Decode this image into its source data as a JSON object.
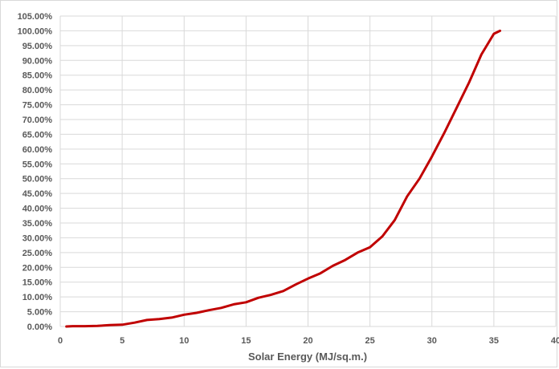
{
  "chart_data": {
    "type": "line",
    "title": "",
    "xlabel": "Solar Energy (MJ/sq.m.)",
    "ylabel": "",
    "xlim": [
      0,
      40
    ],
    "ylim": [
      0,
      1.05
    ],
    "x_ticks": [
      "0",
      "5",
      "10",
      "15",
      "20",
      "25",
      "30",
      "35",
      "40"
    ],
    "y_ticks": [
      "0.00%",
      "5.00%",
      "10.00%",
      "15.00%",
      "20.00%",
      "25.00%",
      "30.00%",
      "35.00%",
      "40.00%",
      "45.00%",
      "50.00%",
      "55.00%",
      "60.00%",
      "65.00%",
      "70.00%",
      "75.00%",
      "80.00%",
      "85.00%",
      "90.00%",
      "95.00%",
      "100.00%",
      "105.00%"
    ],
    "grid": true,
    "legend": "none",
    "series": [
      {
        "color": "#c00000",
        "points": [
          [
            0.5,
            0.0
          ],
          [
            1,
            0.001
          ],
          [
            2,
            0.001
          ],
          [
            3,
            0.002
          ],
          [
            4,
            0.005
          ],
          [
            5,
            0.006
          ],
          [
            6,
            0.013
          ],
          [
            7,
            0.022
          ],
          [
            8,
            0.025
          ],
          [
            9,
            0.03
          ],
          [
            10,
            0.04
          ],
          [
            11,
            0.046
          ],
          [
            12,
            0.055
          ],
          [
            13,
            0.063
          ],
          [
            14,
            0.075
          ],
          [
            15,
            0.082
          ],
          [
            16,
            0.097
          ],
          [
            17,
            0.107
          ],
          [
            18,
            0.12
          ],
          [
            19,
            0.142
          ],
          [
            20,
            0.162
          ],
          [
            21,
            0.18
          ],
          [
            22,
            0.205
          ],
          [
            23,
            0.225
          ],
          [
            24,
            0.25
          ],
          [
            25,
            0.268
          ],
          [
            26,
            0.305
          ],
          [
            27,
            0.36
          ],
          [
            28,
            0.44
          ],
          [
            29,
            0.5
          ],
          [
            30,
            0.575
          ],
          [
            31,
            0.655
          ],
          [
            32,
            0.74
          ],
          [
            33,
            0.825
          ],
          [
            34,
            0.92
          ],
          [
            35,
            0.99
          ],
          [
            35.5,
            1.0
          ]
        ]
      }
    ]
  }
}
